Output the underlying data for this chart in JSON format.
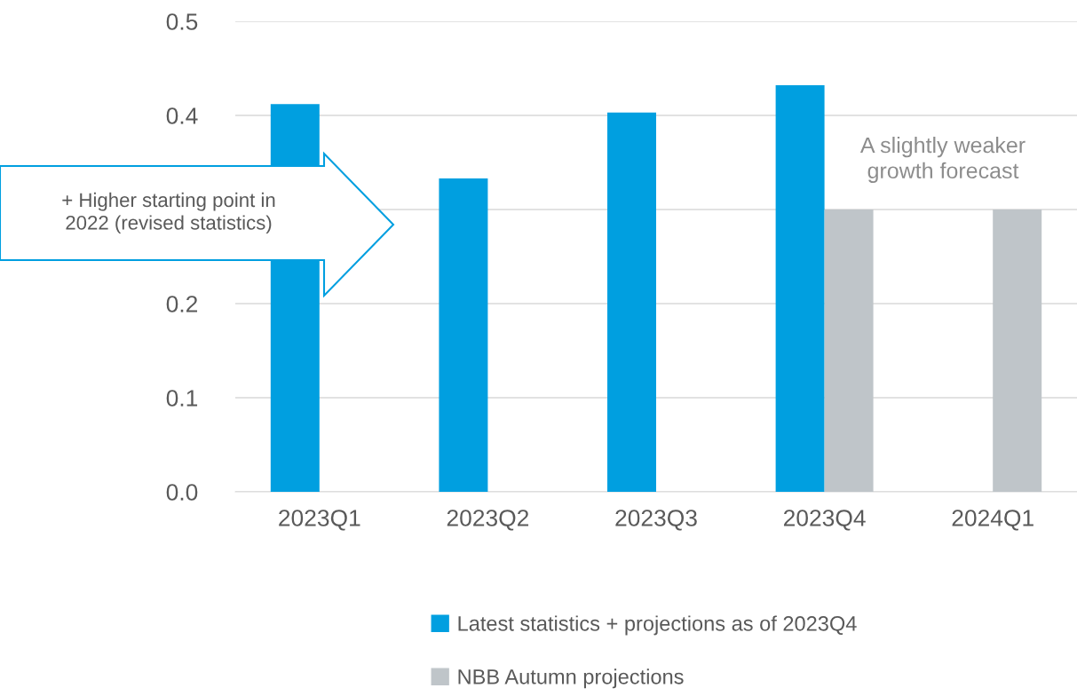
{
  "chart_data": {
    "type": "bar",
    "categories": [
      "2023Q1",
      "2023Q2",
      "2023Q3",
      "2023Q4",
      "2024Q1"
    ],
    "series": [
      {
        "name": "Latest statistics + projections as of 2023Q4",
        "color": "#009fe0",
        "values": [
          0.412,
          0.333,
          0.403,
          0.432,
          null
        ]
      },
      {
        "name": "NBB Autumn projections",
        "color": "#bfc5c9",
        "values": [
          null,
          null,
          null,
          0.3,
          0.3
        ]
      }
    ],
    "ylim": [
      0,
      0.5
    ],
    "yticks": [
      {
        "value": 0,
        "label": "0.0"
      },
      0.1,
      0.2,
      {
        "value": 0.3,
        "label": null
      },
      0.4,
      0.5
    ],
    "grid": "y",
    "legend": "bottom",
    "annotations": [
      "+ Higher starting point in 2022 (revised statistics)",
      "A slightly weaker growth forecast"
    ]
  }
}
